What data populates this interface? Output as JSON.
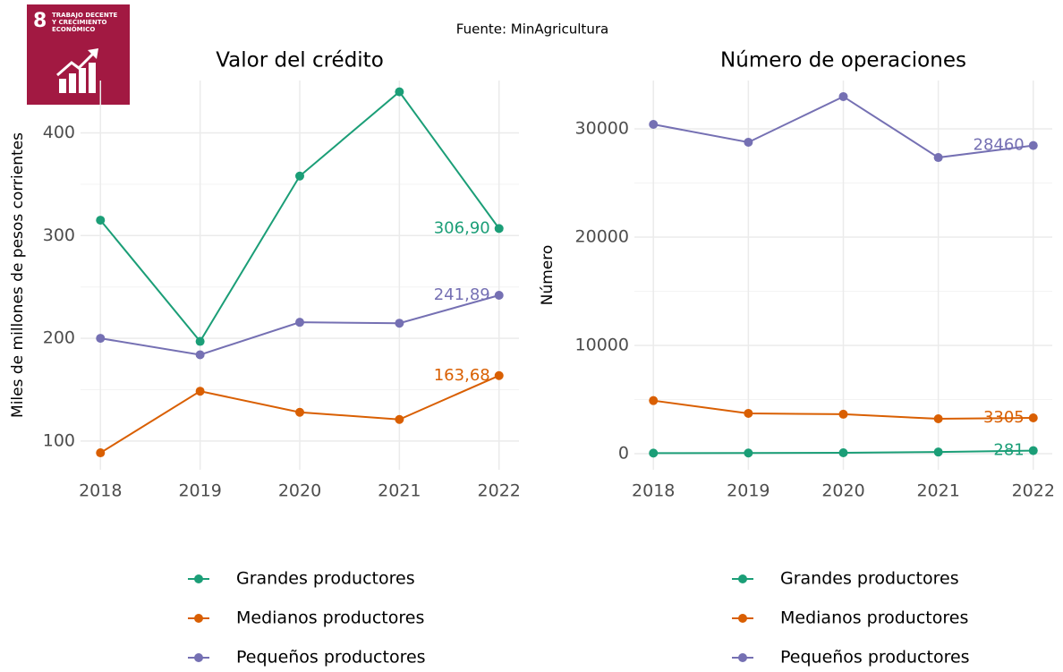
{
  "source": "Fuente: MinAgricultura",
  "badge": {
    "number": "8",
    "lines": [
      "TRABAJO DECENTE",
      "Y CRECIMIENTO",
      "ECONÓMICO"
    ]
  },
  "chart_data": [
    {
      "type": "line",
      "title": "Valor del crédito",
      "y_label": "Miles de millones de pesos corrientes",
      "x": [
        2018,
        2019,
        2020,
        2021,
        2022
      ],
      "xlim": [
        2017.8,
        2022.2
      ],
      "xticks": [
        2018,
        2019,
        2020,
        2021,
        2022
      ],
      "ylim": [
        72,
        451
      ],
      "yticks": [
        100,
        200,
        300,
        400
      ],
      "minor_yticks": [
        150,
        250,
        350
      ],
      "grid": true,
      "legend": "bottom",
      "series": [
        {
          "name": "Grandes productores",
          "color": "#1b9e77",
          "values": [
            315,
            197,
            358,
            440,
            306.9
          ],
          "value_labels": [
            null,
            null,
            null,
            null,
            "306,90"
          ]
        },
        {
          "name": "Medianos productores",
          "color": "#d95f02",
          "values": [
            88.5,
            148.5,
            128,
            121,
            163.68
          ],
          "value_labels": [
            null,
            null,
            null,
            null,
            "163,68"
          ]
        },
        {
          "name": "Pequeños productores",
          "color": "#7570b3",
          "values": [
            200,
            184,
            215.6,
            214.7,
            241.89
          ],
          "value_labels": [
            null,
            null,
            null,
            null,
            "241,89"
          ]
        }
      ]
    },
    {
      "type": "line",
      "title": "Número de operaciones",
      "y_label": "Número",
      "x": [
        2018,
        2019,
        2020,
        2021,
        2022
      ],
      "xlim": [
        2017.8,
        2022.2
      ],
      "xticks": [
        2018,
        2019,
        2020,
        2021,
        2022
      ],
      "ylim": [
        -1490,
        34460
      ],
      "yticks": [
        0,
        10000,
        20000,
        30000
      ],
      "minor_yticks": [
        5000,
        15000,
        25000
      ],
      "grid": true,
      "legend": "bottom",
      "label_last": true,
      "series": [
        {
          "name": "Grandes productores",
          "color": "#1b9e77",
          "values": [
            50,
            60,
            80,
            150,
            281
          ]
        },
        {
          "name": "Medianos productores",
          "color": "#d95f02",
          "values": [
            4900,
            3720,
            3640,
            3220,
            3305
          ]
        },
        {
          "name": "Pequeños productores",
          "color": "#7570b3",
          "values": [
            30410,
            28760,
            32975,
            27350,
            28460
          ]
        }
      ]
    }
  ]
}
